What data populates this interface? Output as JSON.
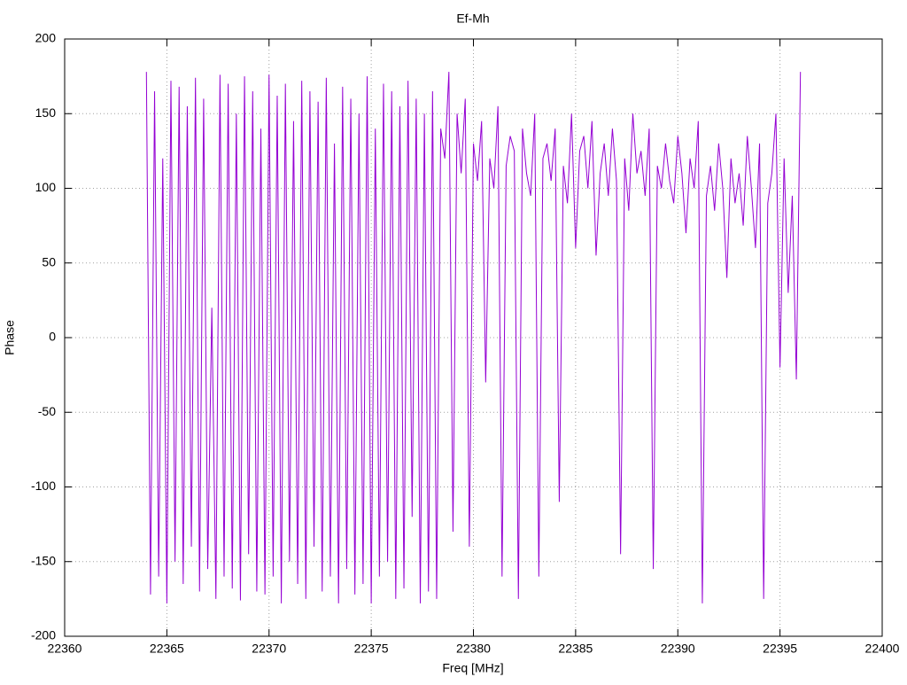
{
  "chart_data": {
    "type": "line",
    "title": "Ef-Mh",
    "x_label": "Freq [MHz]",
    "y_label": "Phase",
    "xlim": [
      22360,
      22400
    ],
    "xticks": [
      22360,
      22365,
      22370,
      22375,
      22380,
      22385,
      22390,
      22395,
      22400
    ],
    "ylim": [
      -200,
      200
    ],
    "yticks": [
      -200,
      -150,
      -100,
      -50,
      0,
      50,
      100,
      150,
      200
    ],
    "grid": true,
    "series": [
      {
        "color": "#9400d3",
        "x": [
          22364,
          22364.2,
          22364.4,
          22364.6,
          22364.8,
          22365,
          22365.2,
          22365.4,
          22365.6,
          22365.8,
          22366,
          22366.2,
          22366.4,
          22366.6,
          22366.8,
          22367,
          22367.2,
          22367.4,
          22367.6,
          22367.8,
          22368,
          22368.2,
          22368.4,
          22368.6,
          22368.8,
          22369,
          22369.2,
          22369.4,
          22369.6,
          22369.8,
          22370,
          22370.2,
          22370.4,
          22370.6,
          22370.8,
          22371,
          22371.2,
          22371.4,
          22371.6,
          22371.8,
          22372,
          22372.2,
          22372.4,
          22372.6,
          22372.8,
          22373,
          22373.2,
          22373.4,
          22373.6,
          22373.8,
          22374,
          22374.2,
          22374.4,
          22374.6,
          22374.8,
          22375,
          22375.2,
          22375.4,
          22375.6,
          22375.8,
          22376,
          22376.2,
          22376.4,
          22376.6,
          22376.8,
          22377,
          22377.2,
          22377.4,
          22377.6,
          22377.8,
          22378,
          22378.2,
          22378.4,
          22378.6,
          22378.8,
          22379,
          22379.2,
          22379.4,
          22379.6,
          22379.8,
          22380,
          22380.2,
          22380.4,
          22380.6,
          22380.8,
          22381,
          22381.2,
          22381.4,
          22381.6,
          22381.8,
          22382,
          22382.2,
          22382.4,
          22382.6,
          22382.8,
          22383,
          22383.2,
          22383.4,
          22383.6,
          22383.8,
          22384,
          22384.2,
          22384.4,
          22384.6,
          22384.8,
          22385,
          22385.2,
          22385.4,
          22385.6,
          22385.8,
          22386,
          22386.2,
          22386.4,
          22386.6,
          22386.8,
          22387,
          22387.2,
          22387.4,
          22387.6,
          22387.8,
          22388,
          22388.2,
          22388.4,
          22388.6,
          22388.8,
          22389,
          22389.2,
          22389.4,
          22389.6,
          22389.8,
          22390,
          22390.2,
          22390.4,
          22390.6,
          22390.8,
          22391,
          22391.2,
          22391.4,
          22391.6,
          22391.8,
          22392,
          22392.2,
          22392.4,
          22392.6,
          22392.8,
          22393,
          22393.2,
          22393.4,
          22393.6,
          22393.8,
          22394,
          22394.2,
          22394.4,
          22394.6,
          22394.8,
          22395,
          22395.2,
          22395.4,
          22395.6,
          22395.8,
          22396
        ],
        "values": [
          178,
          -172,
          165,
          -160,
          120,
          -178,
          172,
          -150,
          168,
          -165,
          155,
          -140,
          174,
          -170,
          160,
          -155,
          20,
          -175,
          176,
          -160,
          170,
          -168,
          150,
          -176,
          175,
          -145,
          165,
          -170,
          140,
          -172,
          176,
          -160,
          162,
          -178,
          170,
          -150,
          145,
          -165,
          172,
          -175,
          165,
          -140,
          158,
          -170,
          174,
          -160,
          130,
          -178,
          168,
          -155,
          160,
          -172,
          150,
          -165,
          175,
          -178,
          140,
          -160,
          170,
          -150,
          165,
          -175,
          155,
          -168,
          172,
          -120,
          160,
          -178,
          150,
          -170,
          165,
          -175,
          140,
          120,
          178,
          -130,
          150,
          110,
          160,
          -140,
          130,
          105,
          145,
          -30,
          120,
          100,
          155,
          -160,
          115,
          135,
          125,
          -175,
          140,
          110,
          95,
          150,
          -160,
          120,
          130,
          105,
          140,
          -110,
          115,
          90,
          150,
          60,
          125,
          135,
          100,
          145,
          55,
          110,
          130,
          95,
          140,
          105,
          -145,
          120,
          85,
          150,
          110,
          125,
          95,
          140,
          -155,
          115,
          100,
          130,
          105,
          90,
          135,
          110,
          70,
          120,
          100,
          145,
          -178,
          95,
          115,
          85,
          130,
          100,
          40,
          120,
          90,
          110,
          75,
          135,
          100,
          60,
          130,
          -175,
          90,
          110,
          150,
          -20,
          120,
          30,
          95,
          -28,
          178
        ]
      }
    ]
  }
}
